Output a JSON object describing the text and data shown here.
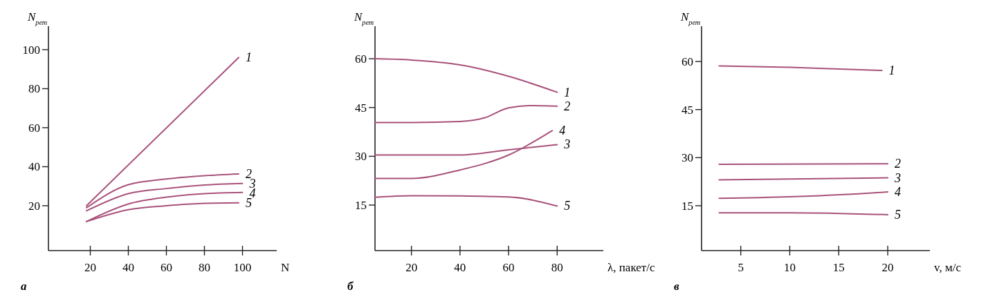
{
  "chart_data": [
    {
      "type": "line",
      "ylabel": "N$_{рет}$",
      "xlabel": "N",
      "xlim": [
        -2,
        118
      ],
      "ylim": [
        -3,
        112
      ],
      "xticks": [
        20,
        40,
        60,
        80,
        100
      ],
      "yticks": [
        20,
        40,
        60,
        80,
        100
      ],
      "grid": false,
      "legend": false,
      "marker": "none",
      "line_style": "solid",
      "annotations": [
        "а"
      ],
      "series": [
        {
          "name": "1",
          "color": "#a8507a",
          "x": [
            18,
            98
          ],
          "values": [
            20,
            96
          ]
        },
        {
          "name": "2",
          "color": "#a8507a",
          "x": [
            18,
            40,
            60,
            80,
            98
          ],
          "values": [
            19,
            30.8,
            33.7,
            35.4,
            36.3
          ]
        },
        {
          "name": "3",
          "color": "#a8507a",
          "x": [
            18,
            40,
            60,
            80,
            100
          ],
          "values": [
            17.4,
            26.2,
            28.8,
            30.6,
            31.4
          ]
        },
        {
          "name": "4",
          "color": "#a8507a",
          "x": [
            18,
            40,
            60,
            80,
            100
          ],
          "values": [
            11.9,
            20.9,
            24.4,
            26.2,
            26.8
          ]
        },
        {
          "name": "5",
          "color": "#a8507a",
          "x": [
            18,
            40,
            60,
            80,
            98
          ],
          "values": [
            11.9,
            18,
            20,
            21.2,
            21.5
          ]
        }
      ]
    },
    {
      "type": "line",
      "ylabel": "N$_{рет}$",
      "xlabel": "λ, пакет/с",
      "xlim": [
        5,
        99
      ],
      "ylim": [
        1,
        70
      ],
      "xticks": [
        20,
        40,
        60,
        80
      ],
      "yticks": [
        15,
        30,
        45,
        60
      ],
      "grid": false,
      "legend": false,
      "marker": "none",
      "line_style": "solid",
      "annotations": [
        "б"
      ],
      "series": [
        {
          "name": "1",
          "color": "#a8507a",
          "x": [
            5,
            20,
            40,
            60,
            80
          ],
          "values": [
            60,
            59.6,
            58.1,
            54.6,
            49.7
          ]
        },
        {
          "name": "2",
          "color": "#a8507a",
          "x": [
            5,
            20,
            40,
            50,
            60,
            70,
            80
          ],
          "values": [
            40.4,
            40.4,
            40.7,
            41.8,
            44.9,
            45.6,
            45.4
          ]
        },
        {
          "name": "3",
          "color": "#a8507a",
          "x": [
            5,
            40,
            60,
            80
          ],
          "values": [
            30.4,
            30.4,
            32,
            33.6
          ]
        },
        {
          "name": "4",
          "color": "#a8507a",
          "x": [
            5,
            20,
            40,
            60,
            78
          ],
          "values": [
            23.2,
            23.2,
            25.8,
            30.4,
            37.9
          ]
        },
        {
          "name": "5",
          "color": "#a8507a",
          "x": [
            5,
            20,
            40,
            60,
            80
          ],
          "values": [
            17.4,
            17.9,
            17.8,
            17.5,
            14.7
          ]
        }
      ]
    },
    {
      "type": "line",
      "ylabel": "N$_{рет}$",
      "xlabel": "v, м/с",
      "xlim": [
        1,
        24.3
      ],
      "ylim": [
        1,
        71
      ],
      "xticks": [
        5,
        10,
        15,
        20
      ],
      "yticks": [
        15,
        30,
        45,
        60
      ],
      "grid": false,
      "legend": false,
      "marker": "none",
      "line_style": "solid",
      "annotations": [
        "в"
      ],
      "series": [
        {
          "name": "1",
          "color": "#a8507a",
          "x": [
            2.8,
            10,
            19.4
          ],
          "values": [
            58.6,
            58.2,
            57.2
          ]
        },
        {
          "name": "2",
          "color": "#a8507a",
          "x": [
            2.8,
            20
          ],
          "values": [
            27.9,
            28.1
          ]
        },
        {
          "name": "3",
          "color": "#a8507a",
          "x": [
            2.8,
            20
          ],
          "values": [
            23.1,
            23.7
          ]
        },
        {
          "name": "4",
          "color": "#a8507a",
          "x": [
            2.8,
            10,
            17,
            20
          ],
          "values": [
            17.3,
            17.8,
            18.7,
            19.3
          ]
        },
        {
          "name": "5",
          "color": "#a8507a",
          "x": [
            2.8,
            10,
            20
          ],
          "values": [
            12.8,
            12.8,
            12.2
          ]
        }
      ]
    }
  ]
}
